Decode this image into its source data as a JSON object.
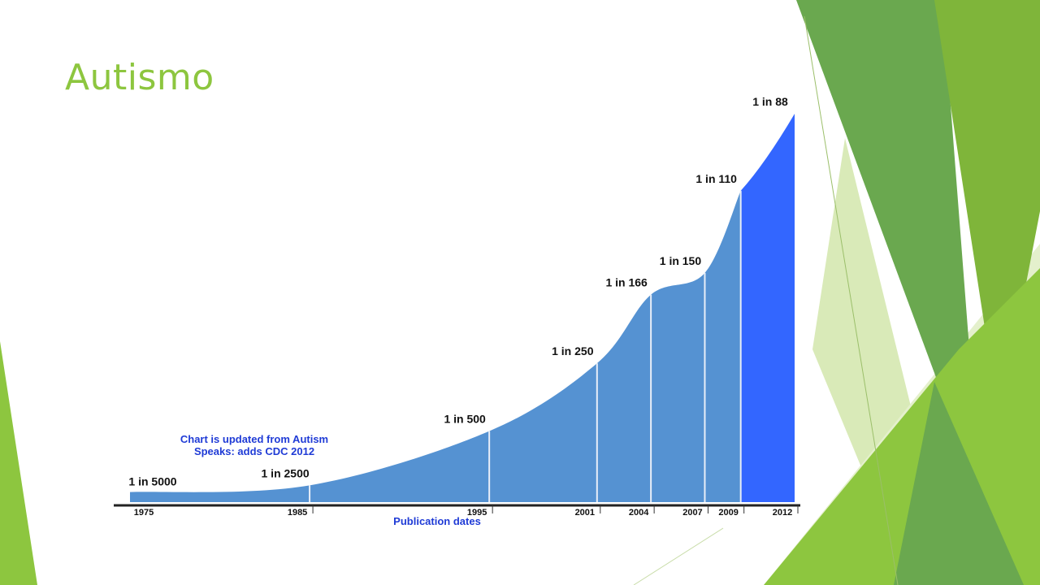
{
  "slide": {
    "title": "Autismo"
  },
  "theme": {
    "title_color": "#8dc63f",
    "area_fill": "#5592d2",
    "area_fill_recent": "#3366ff",
    "note_color": "#1f3bd6",
    "deco_greens": [
      "#8dc63f",
      "#6aa84f",
      "#7fb53a",
      "#d9eab8"
    ]
  },
  "chart_data": {
    "type": "area",
    "x": [
      1975,
      1985,
      1995,
      2001,
      2004,
      2007,
      2009,
      2012
    ],
    "x_tick_labels": [
      "1975",
      "1985",
      "1995",
      "2001",
      "2004",
      "2007",
      "2009",
      "2012"
    ],
    "point_labels": [
      "1 in 5000",
      "1 in 2500",
      "1 in 500",
      "1 in 250",
      "1 in 166",
      "1 in 150",
      "1 in 110",
      "1 in 88"
    ],
    "denominators": [
      5000,
      2500,
      500,
      250,
      166,
      150,
      110,
      88
    ],
    "xlabel": "Publication dates",
    "ylabel": "",
    "annotation": [
      "Chart is updated from Autism",
      "Speaks: adds CDC 2012"
    ]
  }
}
